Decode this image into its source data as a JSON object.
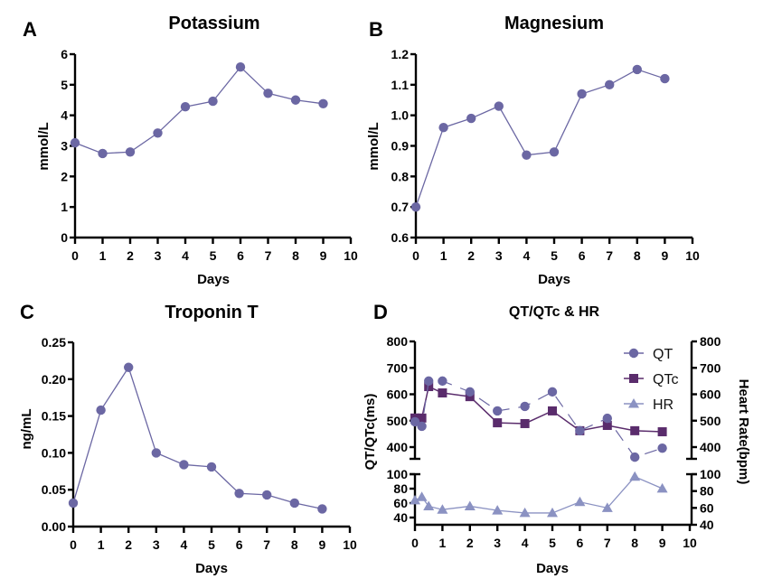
{
  "colors": {
    "series_main": "#6b67a3",
    "qt": "#6b67a3",
    "qtc": "#5a2c6c",
    "hr": "#8b92c2",
    "axis": "#000000"
  },
  "chart_data": [
    {
      "panel": "A",
      "type": "line",
      "title": "Potassium",
      "xlabel": "Days",
      "ylabel": "mmol/L",
      "x": [
        0,
        1,
        2,
        3,
        4,
        5,
        6,
        7,
        8,
        9
      ],
      "values": [
        3.1,
        2.75,
        2.8,
        3.42,
        4.28,
        4.46,
        5.58,
        4.72,
        4.5,
        4.38
      ],
      "xlim": [
        0,
        10
      ],
      "ylim": [
        0,
        6
      ],
      "xticks": [
        "0",
        "1",
        "2",
        "3",
        "4",
        "5",
        "6",
        "7",
        "8",
        "9",
        "10"
      ],
      "yticks": [
        "0",
        "1",
        "2",
        "3",
        "4",
        "5",
        "6"
      ],
      "grid": false
    },
    {
      "panel": "B",
      "type": "line",
      "title": "Magnesium",
      "xlabel": "Days",
      "ylabel": "mmol/L",
      "x": [
        0,
        1,
        2,
        3,
        4,
        5,
        6,
        7,
        8,
        9
      ],
      "values": [
        0.7,
        0.96,
        0.99,
        1.03,
        0.87,
        0.88,
        1.07,
        1.1,
        1.15,
        1.12
      ],
      "xlim": [
        0,
        10
      ],
      "ylim": [
        0.6,
        1.2
      ],
      "xticks": [
        "0",
        "1",
        "2",
        "3",
        "4",
        "5",
        "6",
        "7",
        "8",
        "9",
        "10"
      ],
      "yticks": [
        "0.6",
        "0.7",
        "0.8",
        "0.9",
        "1.0",
        "1.1",
        "1.2"
      ],
      "grid": false
    },
    {
      "panel": "C",
      "type": "line",
      "title": "Troponin T",
      "xlabel": "Days",
      "ylabel": "ng/mL",
      "x": [
        0,
        1,
        2,
        3,
        4,
        5,
        6,
        7,
        8,
        9
      ],
      "values": [
        0.032,
        0.158,
        0.216,
        0.1,
        0.084,
        0.081,
        0.045,
        0.043,
        0.032,
        0.024
      ],
      "xlim": [
        0,
        10
      ],
      "ylim": [
        0,
        0.25
      ],
      "xticks": [
        "0",
        "1",
        "2",
        "3",
        "4",
        "5",
        "6",
        "7",
        "8",
        "9",
        "10"
      ],
      "yticks": [
        "0.00",
        "0.05",
        "0.10",
        "0.15",
        "0.20",
        "0.25"
      ],
      "grid": false
    },
    {
      "panel": "D",
      "type": "line",
      "title": "QT/QTc & HR",
      "xlabel": "Days",
      "ylabel": "QT/QTc(ms)",
      "ylabel_right": "Heart Rate(bpm)",
      "x": [
        0,
        0.25,
        0.5,
        1,
        2,
        3,
        4,
        5,
        6,
        7,
        8,
        9
      ],
      "series": [
        {
          "name": "QT",
          "marker": "circle",
          "axis": "left-upper",
          "values": [
            496,
            479,
            650,
            650,
            609,
            537,
            554,
            609,
            462,
            509,
            362,
            396
          ]
        },
        {
          "name": "QTc",
          "marker": "square",
          "axis": "left-upper",
          "values": [
            510,
            510,
            629,
            605,
            591,
            492,
            489,
            537,
            462,
            482,
            462,
            458
          ]
        },
        {
          "name": "HR",
          "marker": "triangle",
          "axis": "right-lower",
          "values": [
            69,
            73,
            62,
            58,
            62,
            57,
            54,
            54,
            67,
            60,
            97,
            83
          ]
        }
      ],
      "xlim": [
        0,
        10
      ],
      "ylim_upper": [
        350,
        800
      ],
      "ylim_lower": [
        30,
        100
      ],
      "xticks": [
        "0",
        "1",
        "2",
        "3",
        "4",
        "5",
        "6",
        "7",
        "8",
        "9",
        "10"
      ],
      "yticks_upper": [
        "400",
        "500",
        "600",
        "700",
        "800"
      ],
      "yticks_lower": [
        "40",
        "60",
        "80",
        "100"
      ],
      "yticks_right_upper": [
        "400",
        "500",
        "600",
        "700",
        "800"
      ],
      "yticks_right_lower": [
        "40",
        "60",
        "80",
        "100"
      ],
      "legend": [
        "QT",
        "QTc",
        "HR"
      ],
      "legend_position": "top-right",
      "grid": false
    }
  ]
}
